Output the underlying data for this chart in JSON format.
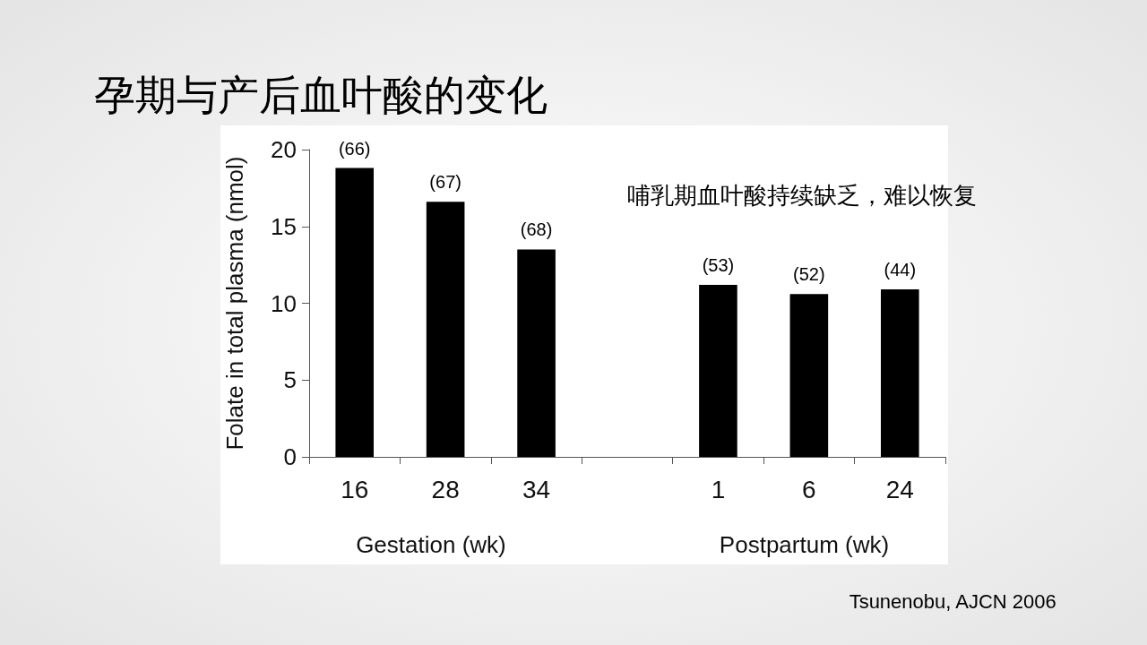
{
  "chart_data": {
    "type": "bar",
    "title": "孕期与产后血叶酸的变化",
    "ylabel": "Folate in total plasma (nmol)",
    "categories": [
      "16",
      "28",
      "34",
      null,
      "1",
      "6",
      "24"
    ],
    "series": [
      {
        "color": "#000000",
        "values": [
          18.8,
          16.6,
          13.5,
          null,
          11.2,
          10.6,
          10.9
        ]
      }
    ],
    "ylim": [
      0,
      20
    ],
    "yticks": [
      0,
      5,
      10,
      15,
      20
    ],
    "grid": false,
    "annotations": [
      "Gestation (wk)",
      "Postpartum (wk)",
      "哺乳期血叶酸持续缺乏，难以恢复",
      "Tsunenobu, AJCN 2006",
      {
        "text": "(66)",
        "x": "16",
        "y": 18.8
      },
      {
        "text": "(67)",
        "x": "28",
        "y": 16.6
      },
      {
        "text": "(68)",
        "x": "34",
        "y": 13.5
      },
      {
        "text": "(53)",
        "x": "1",
        "y": 11.2
      },
      {
        "text": "(52)",
        "x": "6",
        "y": 10.6
      },
      {
        "text": "(44)",
        "x": "24",
        "y": 10.9
      }
    ]
  }
}
